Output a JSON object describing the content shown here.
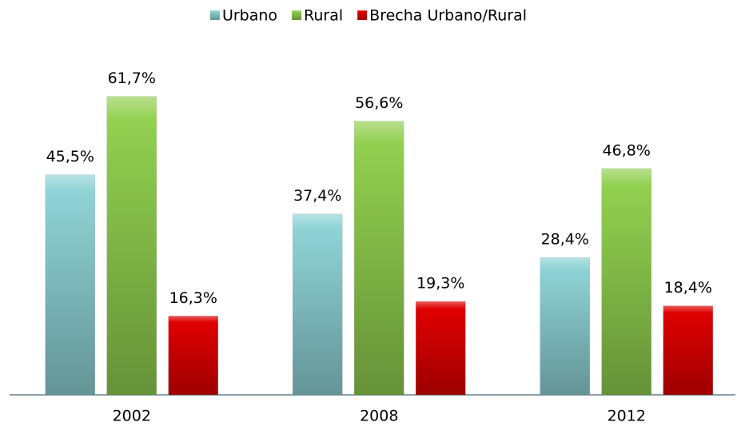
{
  "chart_data": {
    "type": "bar",
    "categories": [
      "2002",
      "2008",
      "2012"
    ],
    "series": [
      {
        "name": "Urbano",
        "color": "#8fd3d6",
        "values": [
          45.5,
          37.4,
          28.4
        ],
        "value_labels": [
          "45,5%",
          "37,4%",
          "28,4%"
        ]
      },
      {
        "name": "Rural",
        "color": "#92d050",
        "values": [
          61.7,
          56.6,
          46.8
        ],
        "value_labels": [
          "61,7%",
          "56,6%",
          "46,8%"
        ]
      },
      {
        "name": "Brecha Urbano/Rural",
        "color": "#e00000",
        "values": [
          16.3,
          19.3,
          18.4
        ],
        "value_labels": [
          "16,3%",
          "19,3%",
          "18,4%"
        ]
      }
    ],
    "ylim": [
      0,
      80
    ],
    "legend": "top"
  }
}
